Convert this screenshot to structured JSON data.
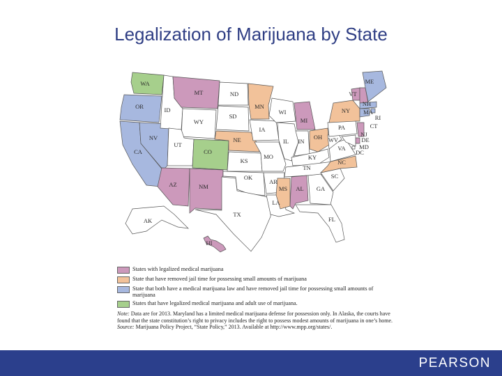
{
  "title": "Legalization of Marijuana by State",
  "colors": {
    "medical": "#cc99bb",
    "jail_removed": "#f2c29a",
    "both": "#a7b8df",
    "medical_adult": "#a6cf8c",
    "none": "#ffffff",
    "footer": "#2b3f8c",
    "title": "#2f3e84"
  },
  "legend": [
    {
      "category": "medical",
      "label": "States with legalized medical marijuana"
    },
    {
      "category": "jail_removed",
      "label": "State that have removed jail time for possessing small amounts of marijuana"
    },
    {
      "category": "both",
      "label": "State that both have a medical marijuana law and have removed jail time for possessing small amounts of marijuana"
    },
    {
      "category": "medical_adult",
      "label": "States that have legalized medical marijuana and adult use of marijuana."
    }
  ],
  "notes": {
    "note_label": "Note:",
    "note_text": "Data are for 2013. Maryland has a limited medical marijuana defense for possession only. In Alaska, the courts have found that the state constitution’s right to privacy includes the right to possess modest amounts of marijuana in one’s home.",
    "source_label": "Source:",
    "source_text": "Marijuana Policy Project, “State Policy,” 2013. Available at http://www.mpp.org/states/."
  },
  "brand": "PEARSON",
  "states": [
    {
      "abbr": "WA",
      "category": "medical_adult"
    },
    {
      "abbr": "OR",
      "category": "both"
    },
    {
      "abbr": "CA",
      "category": "both"
    },
    {
      "abbr": "NV",
      "category": "both"
    },
    {
      "abbr": "ID",
      "category": "none"
    },
    {
      "abbr": "MT",
      "category": "medical"
    },
    {
      "abbr": "WY",
      "category": "none"
    },
    {
      "abbr": "UT",
      "category": "none"
    },
    {
      "abbr": "CO",
      "category": "medical_adult"
    },
    {
      "abbr": "AZ",
      "category": "medical"
    },
    {
      "abbr": "NM",
      "category": "medical"
    },
    {
      "abbr": "ND",
      "category": "none"
    },
    {
      "abbr": "SD",
      "category": "none"
    },
    {
      "abbr": "NE",
      "category": "jail_removed"
    },
    {
      "abbr": "KS",
      "category": "none"
    },
    {
      "abbr": "OK",
      "category": "none"
    },
    {
      "abbr": "TX",
      "category": "none"
    },
    {
      "abbr": "MN",
      "category": "jail_removed"
    },
    {
      "abbr": "IA",
      "category": "none"
    },
    {
      "abbr": "MO",
      "category": "none"
    },
    {
      "abbr": "AR",
      "category": "none"
    },
    {
      "abbr": "LA",
      "category": "none"
    },
    {
      "abbr": "WI",
      "category": "none"
    },
    {
      "abbr": "IL",
      "category": "none"
    },
    {
      "abbr": "MI",
      "category": "medical"
    },
    {
      "abbr": "IN",
      "category": "none"
    },
    {
      "abbr": "OH",
      "category": "jail_removed"
    },
    {
      "abbr": "KY",
      "category": "none"
    },
    {
      "abbr": "TN",
      "category": "none"
    },
    {
      "abbr": "MS",
      "category": "jail_removed"
    },
    {
      "abbr": "AL",
      "category": "medical"
    },
    {
      "abbr": "GA",
      "category": "none"
    },
    {
      "abbr": "FL",
      "category": "none"
    },
    {
      "abbr": "SC",
      "category": "none"
    },
    {
      "abbr": "NC",
      "category": "jail_removed"
    },
    {
      "abbr": "VA",
      "category": "none"
    },
    {
      "abbr": "WV",
      "category": "none"
    },
    {
      "abbr": "PA",
      "category": "none"
    },
    {
      "abbr": "NY",
      "category": "jail_removed"
    },
    {
      "abbr": "VT",
      "category": "medical"
    },
    {
      "abbr": "NH",
      "category": "medical"
    },
    {
      "abbr": "ME",
      "category": "both"
    },
    {
      "abbr": "MA",
      "category": "both"
    },
    {
      "abbr": "RI",
      "category": "both"
    },
    {
      "abbr": "CT",
      "category": "both"
    },
    {
      "abbr": "NJ",
      "category": "medical"
    },
    {
      "abbr": "DE",
      "category": "medical"
    },
    {
      "abbr": "MD",
      "category": "none"
    },
    {
      "abbr": "DC",
      "category": "none"
    },
    {
      "abbr": "AK",
      "category": "none"
    },
    {
      "abbr": "HI",
      "category": "medical"
    }
  ]
}
